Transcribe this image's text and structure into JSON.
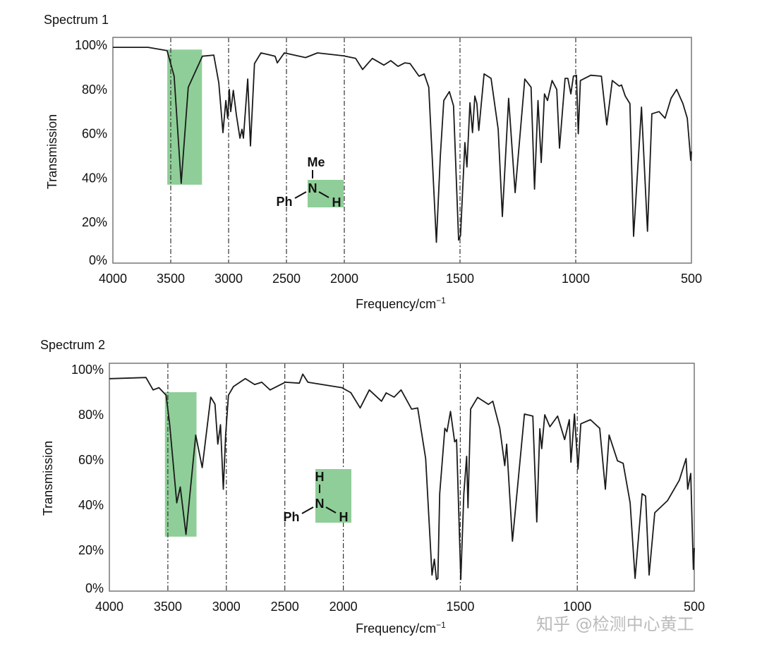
{
  "watermark": "知乎 @检测中心黄工",
  "colors": {
    "line": "#1a1a1a",
    "highlight": "#8fce98",
    "frame": "#777777",
    "grid": "#333333"
  },
  "chart_data": [
    {
      "type": "line",
      "title": "Spectrum 1",
      "xlabel": "Frequency/cm",
      "xlabel_superscript": "−1",
      "ylabel": "Transmission",
      "xlim": [
        4000,
        500
      ],
      "x_scale_note": "2000–500 region expanded 2×",
      "ylim": [
        0,
        100
      ],
      "x_ticks": [
        4000,
        3500,
        3000,
        2500,
        2000,
        1500,
        1000,
        500
      ],
      "x_tick_labels": [
        "4000",
        "3500",
        "3000",
        "2500",
        "2000",
        "1500",
        "1000",
        "500"
      ],
      "y_ticks": [
        100,
        80,
        60,
        40,
        20,
        0
      ],
      "y_tick_labels": [
        "100%",
        "80%",
        "60%",
        "40%",
        "20%",
        "0%"
      ],
      "grid": "dashed vertical at 3500, 3000, 2500, 2000, 1500, 1000",
      "highlight": {
        "x": [
          3530,
          3230
        ],
        "y": [
          37,
          98
        ]
      },
      "molecule": {
        "top": "Me",
        "center": "N",
        "left": "Ph",
        "right": "H"
      },
      "x": [
        4000,
        3695,
        3532,
        3471,
        3410,
        3349,
        3227,
        3128,
        3085,
        3049,
        3024,
        3008,
        2994,
        2982,
        2959,
        2933,
        2902,
        2884,
        2872,
        2835,
        2811,
        2776,
        2720,
        2598,
        2579,
        2518,
        2335,
        2232,
        2008,
        1951,
        1921,
        1879,
        1829,
        1799,
        1768,
        1738,
        1716,
        1677,
        1655,
        1635,
        1602,
        1585,
        1570,
        1546,
        1528,
        1506,
        1498,
        1479,
        1470,
        1457,
        1446,
        1436,
        1427,
        1419,
        1396,
        1366,
        1335,
        1317,
        1290,
        1262,
        1220,
        1193,
        1178,
        1163,
        1149,
        1135,
        1122,
        1102,
        1082,
        1070,
        1046,
        1034,
        1021,
        1010,
        997,
        989,
        980,
        935,
        889,
        866,
        842,
        812,
        802,
        786,
        766,
        750,
        716,
        690,
        671,
        640,
        614,
        588,
        564,
        537,
        518,
        503,
        500
      ],
      "y": [
        99,
        99,
        97.5,
        86,
        37.6,
        81,
        95,
        95.5,
        83,
        60.5,
        75,
        67,
        80,
        70,
        79.6,
        68.5,
        58,
        62,
        58,
        84.7,
        54.5,
        91.7,
        96.5,
        95,
        92,
        96.5,
        94.4,
        96.5,
        95.2,
        94,
        89,
        94,
        91,
        93,
        90.4,
        92,
        91.7,
        86,
        87,
        81,
        11,
        50,
        75,
        79,
        72.6,
        12,
        14,
        56,
        45,
        74,
        60.5,
        77,
        73.6,
        61.5,
        87,
        85,
        62,
        22.6,
        76,
        33.4,
        84.7,
        81,
        35,
        75,
        47,
        78,
        75,
        84,
        80,
        53.5,
        85,
        85,
        78,
        86,
        86.4,
        60,
        84,
        86.4,
        86,
        64,
        84,
        81.5,
        82,
        77,
        73.6,
        13.7,
        72,
        16,
        69,
        70,
        67,
        76,
        80,
        73.6,
        67,
        48,
        52
      ]
    },
    {
      "type": "line",
      "title": "Spectrum 2",
      "xlabel": "Frequency/cm",
      "xlabel_superscript": "−1",
      "ylabel": "Transmission",
      "xlim": [
        4000,
        500
      ],
      "x_scale_note": "2000–500 region expanded 2×",
      "ylim": [
        0,
        100
      ],
      "x_ticks": [
        4000,
        3500,
        3000,
        2500,
        2000,
        1500,
        1000,
        500
      ],
      "x_tick_labels": [
        "4000",
        "3500",
        "3000",
        "2500",
        "2000",
        "1500",
        "1000",
        "500"
      ],
      "y_ticks": [
        100,
        80,
        60,
        40,
        20,
        0
      ],
      "y_tick_labels": [
        "100%",
        "80%",
        "60%",
        "40%",
        "20%",
        "0%"
      ],
      "grid": "dashed vertical at 3500, 3000, 2500, 2000, 1500, 1000",
      "highlight": {
        "x": [
          3525,
          3255
        ],
        "y": [
          26,
          90
        ]
      },
      "molecule": {
        "top": "H",
        "center": "N",
        "left": "Ph",
        "right": "H"
      },
      "x": [
        4000,
        3990,
        3687,
        3626,
        3576,
        3515,
        3485,
        3424,
        3394,
        3345,
        3262,
        3206,
        3133,
        3097,
        3073,
        3050,
        3026,
        3006,
        2982,
        2939,
        2838,
        2758,
        2697,
        2626,
        2497,
        2376,
        2347,
        2303,
        2012,
        1968,
        1928,
        1889,
        1837,
        1817,
        1783,
        1753,
        1708,
        1682,
        1648,
        1621,
        1611,
        1602,
        1596,
        1588,
        1566,
        1557,
        1542,
        1524,
        1516,
        1498,
        1485,
        1473,
        1467,
        1456,
        1426,
        1380,
        1361,
        1331,
        1310,
        1302,
        1277,
        1226,
        1190,
        1173,
        1160,
        1152,
        1139,
        1117,
        1084,
        1054,
        1034,
        1027,
        1012,
        997,
        985,
        944,
        904,
        880,
        864,
        828,
        804,
        774,
        753,
        723,
        708,
        693,
        669,
        614,
        564,
        535,
        528,
        515,
        504,
        500
      ],
      "y": [
        96,
        96,
        96.5,
        91,
        92,
        88.7,
        76,
        41,
        48,
        27,
        71,
        56.6,
        87.8,
        84.7,
        67,
        75.6,
        47,
        71,
        88.7,
        92.5,
        96,
        93.4,
        94.4,
        91,
        94.4,
        94,
        98,
        94.4,
        92,
        89.8,
        83,
        91,
        86,
        89.7,
        87.8,
        91,
        82.5,
        83,
        60.6,
        9,
        16,
        7,
        7.5,
        45,
        74,
        72.5,
        81.5,
        68,
        69,
        7,
        45,
        61.6,
        38.8,
        82.5,
        87.7,
        84.6,
        86,
        74,
        57.5,
        67,
        24,
        80.3,
        79.4,
        32.5,
        73.8,
        65,
        80,
        74.7,
        79.4,
        69,
        77.8,
        59,
        80.3,
        56,
        76,
        77.8,
        74,
        47,
        71,
        59.6,
        58.5,
        41,
        7.5,
        45,
        44,
        9,
        36.6,
        42,
        51,
        60.6,
        47,
        54,
        11.5,
        21
      ]
    }
  ]
}
